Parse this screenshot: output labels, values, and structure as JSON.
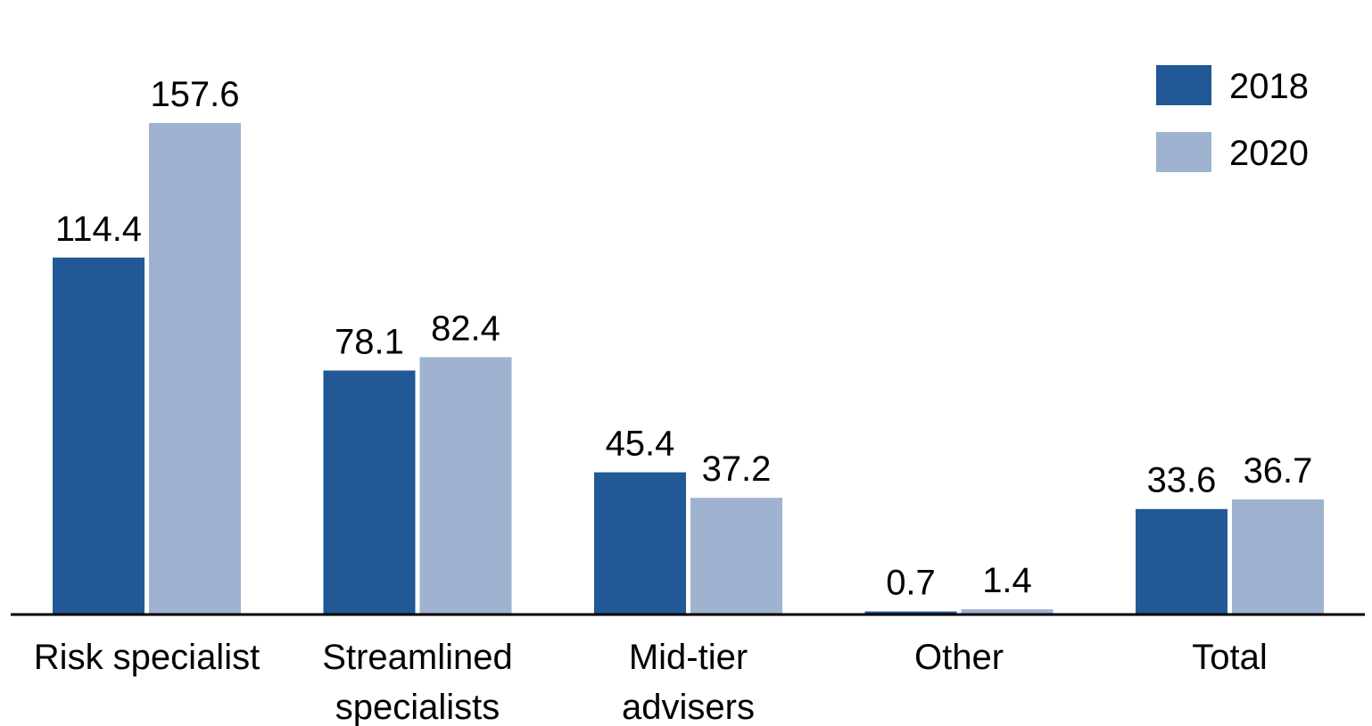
{
  "chart_data": {
    "type": "bar",
    "categories": [
      [
        "Risk specialist"
      ],
      [
        "Streamlined",
        "specialists"
      ],
      [
        "Mid-tier",
        "advisers"
      ],
      [
        "Other"
      ],
      [
        "Total"
      ]
    ],
    "series": [
      {
        "name": "2018",
        "color": "#215895",
        "values": [
          114.4,
          78.1,
          45.4,
          0.7,
          33.6
        ],
        "labels": [
          "114.4",
          "78.1",
          "45.4",
          "0.7",
          "33.6"
        ]
      },
      {
        "name": "2020",
        "color": "#9fb2d0",
        "values": [
          157.6,
          82.4,
          37.2,
          1.4,
          36.7
        ],
        "labels": [
          "157.6",
          "82.4",
          "37.2",
          "1.4",
          "36.7"
        ]
      }
    ],
    "title": "",
    "xlabel": "",
    "ylabel": "",
    "ylim": [
      0,
      160
    ],
    "grid": false,
    "legend_position": "top-right",
    "axis_color": "#000000"
  }
}
